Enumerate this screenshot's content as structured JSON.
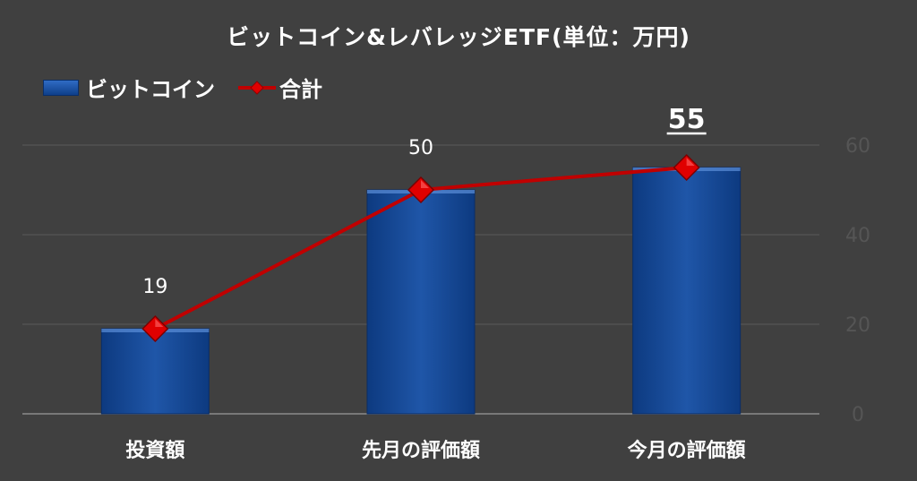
{
  "chart_data": {
    "type": "bar",
    "title": "ビットコイン&レバレッジETF(単位：万円)",
    "categories": [
      "投資額",
      "先月の評価額",
      "今月の評価額"
    ],
    "series": [
      {
        "name": "ビットコイン",
        "type": "bar",
        "values": [
          19,
          50,
          55
        ]
      },
      {
        "name": "合計",
        "type": "line",
        "values": [
          19,
          50,
          55
        ]
      }
    ],
    "data_labels": [
      "19",
      "50",
      "55"
    ],
    "y_ticks": [
      "0",
      "20",
      "40",
      "60"
    ],
    "ylim": [
      0,
      60
    ],
    "grid": true,
    "legend_position": "top-left",
    "colors": {
      "background": "#404040",
      "bar": "#1a4f9c",
      "line": "#c00000",
      "gridline": "#5a5a5a",
      "text": "#ffffff",
      "tick": "#555555"
    }
  }
}
